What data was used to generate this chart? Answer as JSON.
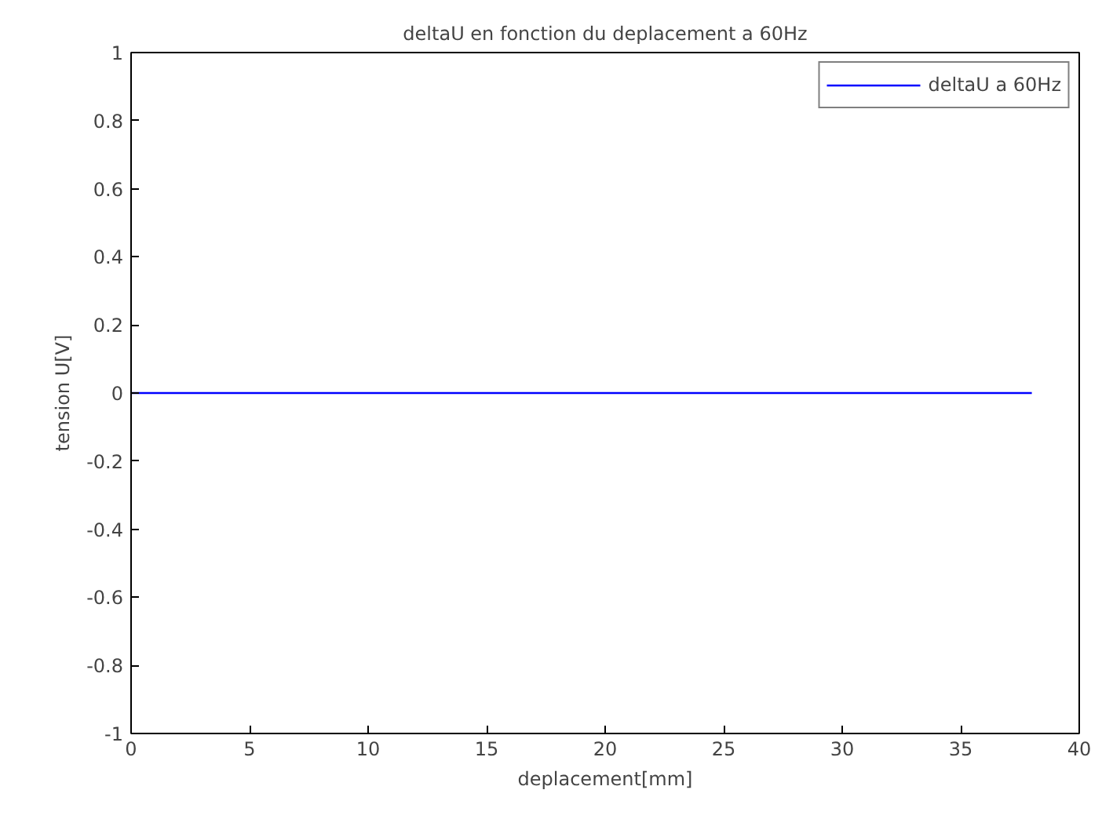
{
  "chart_data": {
    "type": "line",
    "title": "deltaU en fonction du deplacement a 60Hz",
    "xlabel": "deplacement[mm]",
    "ylabel": "tension U[V]",
    "x": [
      0,
      38
    ],
    "series": [
      {
        "name": "deltaU a 60Hz",
        "color": "#0000ff",
        "values": [
          0,
          0
        ]
      }
    ],
    "xlim": [
      0,
      40
    ],
    "xticks": [
      0,
      5,
      10,
      15,
      20,
      25,
      30,
      35,
      40
    ],
    "ylim": [
      -1,
      1
    ],
    "yticks": [
      -1,
      -0.8,
      -0.6,
      -0.4,
      -0.2,
      0,
      0.2,
      0.4,
      0.6,
      0.8,
      1
    ],
    "grid": false,
    "legend": "top right",
    "marker": "none",
    "line_style": "solid"
  }
}
